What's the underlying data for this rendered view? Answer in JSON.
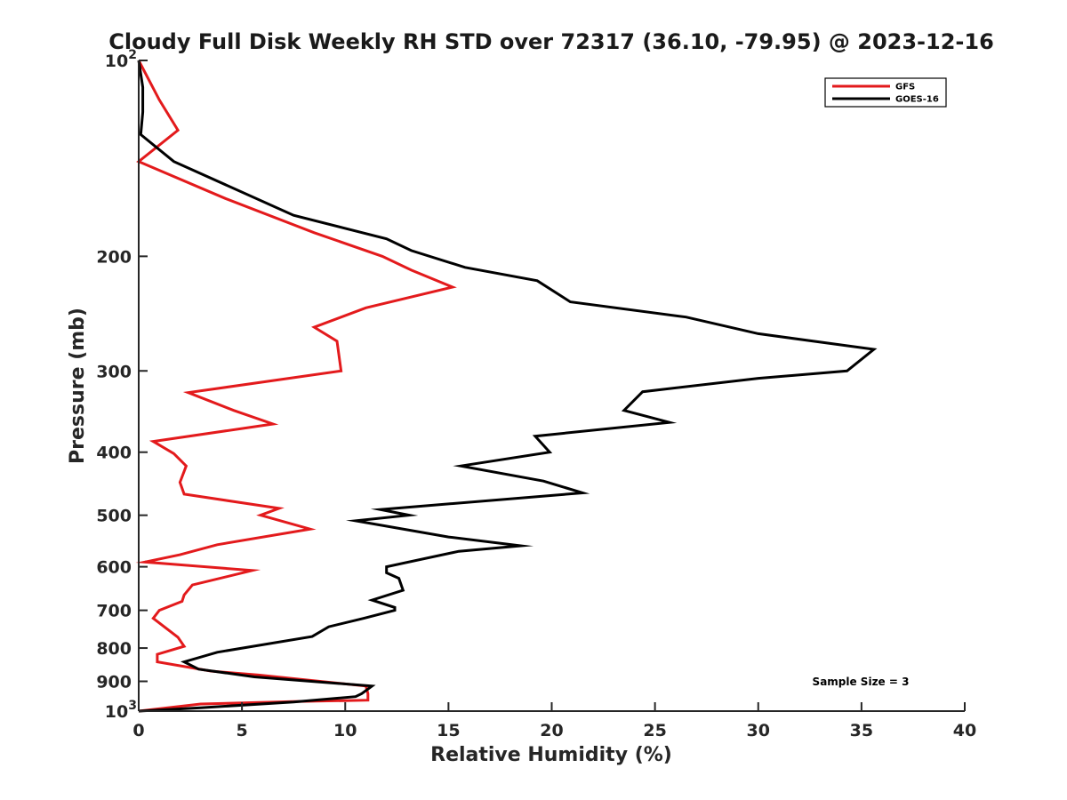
{
  "chart_data": {
    "type": "line",
    "title": "Cloudy Full Disk Weekly RH STD over 72317 (36.10, -79.95) @ 2023-12-16",
    "xlabel": "Relative Humidity (%)",
    "ylabel": "Pressure (mb)",
    "xlim": [
      0,
      40
    ],
    "ylim": [
      100,
      1000
    ],
    "yscale": "log",
    "y_reversed": true,
    "x_ticks": [
      "0",
      "5",
      "10",
      "15",
      "20",
      "25",
      "30",
      "35",
      "40"
    ],
    "y_ticks": [
      {
        "value": 100,
        "label": "10",
        "sup": "2"
      },
      {
        "value": 200,
        "label": "200",
        "sup": ""
      },
      {
        "value": 300,
        "label": "300",
        "sup": ""
      },
      {
        "value": 400,
        "label": "400",
        "sup": ""
      },
      {
        "value": 500,
        "label": "500",
        "sup": ""
      },
      {
        "value": 600,
        "label": "600",
        "sup": ""
      },
      {
        "value": 700,
        "label": "700",
        "sup": ""
      },
      {
        "value": 800,
        "label": "800",
        "sup": ""
      },
      {
        "value": 900,
        "label": "900",
        "sup": ""
      },
      {
        "value": 1000,
        "label": "10",
        "sup": "3"
      }
    ],
    "grid": false,
    "legend_position": "top-right",
    "annotation": "Sample Size = 3",
    "series": [
      {
        "name": "GFS",
        "color": "#e31a1c",
        "points": [
          [
            0.0,
            100
          ],
          [
            1.0,
            115
          ],
          [
            1.9,
            128
          ],
          [
            0.0,
            143
          ],
          [
            4.2,
            163
          ],
          [
            8.5,
            184
          ],
          [
            11.8,
            200
          ],
          [
            13.2,
            210
          ],
          [
            15.2,
            223
          ],
          [
            11.0,
            240
          ],
          [
            8.5,
            257
          ],
          [
            9.6,
            270
          ],
          [
            9.8,
            300
          ],
          [
            2.4,
            324
          ],
          [
            4.6,
            345
          ],
          [
            6.5,
            362
          ],
          [
            0.7,
            385
          ],
          [
            1.7,
            402
          ],
          [
            2.3,
            420
          ],
          [
            2.0,
            445
          ],
          [
            2.2,
            464
          ],
          [
            6.8,
            488
          ],
          [
            5.9,
            500
          ],
          [
            8.3,
            525
          ],
          [
            3.8,
            555
          ],
          [
            2.0,
            575
          ],
          [
            0.3,
            590
          ],
          [
            5.5,
            608
          ],
          [
            2.6,
            640
          ],
          [
            2.2,
            663
          ],
          [
            2.1,
            678
          ],
          [
            1.0,
            700
          ],
          [
            0.7,
            720
          ],
          [
            1.9,
            770
          ],
          [
            2.2,
            795
          ],
          [
            0.9,
            818
          ],
          [
            0.9,
            840
          ],
          [
            3.5,
            868
          ],
          [
            5.8,
            880
          ],
          [
            11.0,
            915
          ],
          [
            11.1,
            940
          ],
          [
            11.1,
            962
          ],
          [
            7.5,
            967
          ],
          [
            3.0,
            975
          ],
          [
            0.0,
            1000
          ]
        ]
      },
      {
        "name": "GOES-16",
        "color": "#000000",
        "points": [
          [
            0.0,
            100
          ],
          [
            0.2,
            110
          ],
          [
            0.2,
            120
          ],
          [
            0.1,
            130
          ],
          [
            1.7,
            143
          ],
          [
            7.5,
            173
          ],
          [
            12.0,
            188
          ],
          [
            13.2,
            196
          ],
          [
            15.8,
            208
          ],
          [
            19.3,
            218
          ],
          [
            20.9,
            235
          ],
          [
            26.5,
            248
          ],
          [
            30.0,
            263
          ],
          [
            35.6,
            278
          ],
          [
            34.3,
            300
          ],
          [
            30.0,
            308
          ],
          [
            24.4,
            323
          ],
          [
            23.5,
            345
          ],
          [
            25.7,
            360
          ],
          [
            19.2,
            378
          ],
          [
            19.9,
            400
          ],
          [
            15.6,
            420
          ],
          [
            19.6,
            443
          ],
          [
            21.5,
            462
          ],
          [
            11.7,
            490
          ],
          [
            13.1,
            500
          ],
          [
            10.5,
            510
          ],
          [
            15.0,
            540
          ],
          [
            18.5,
            557
          ],
          [
            15.5,
            568
          ],
          [
            12.0,
            600
          ],
          [
            12.0,
            613
          ],
          [
            12.6,
            625
          ],
          [
            12.8,
            652
          ],
          [
            11.3,
            675
          ],
          [
            12.4,
            693
          ],
          [
            12.4,
            700
          ],
          [
            10.9,
            720
          ],
          [
            9.2,
            742
          ],
          [
            8.4,
            768
          ],
          [
            3.8,
            812
          ],
          [
            2.2,
            840
          ],
          [
            2.9,
            862
          ],
          [
            5.6,
            886
          ],
          [
            11.3,
            915
          ],
          [
            10.8,
            940
          ],
          [
            10.5,
            950
          ],
          [
            7.5,
            968
          ],
          [
            3.0,
            988
          ],
          [
            0.0,
            1000
          ]
        ]
      }
    ]
  }
}
